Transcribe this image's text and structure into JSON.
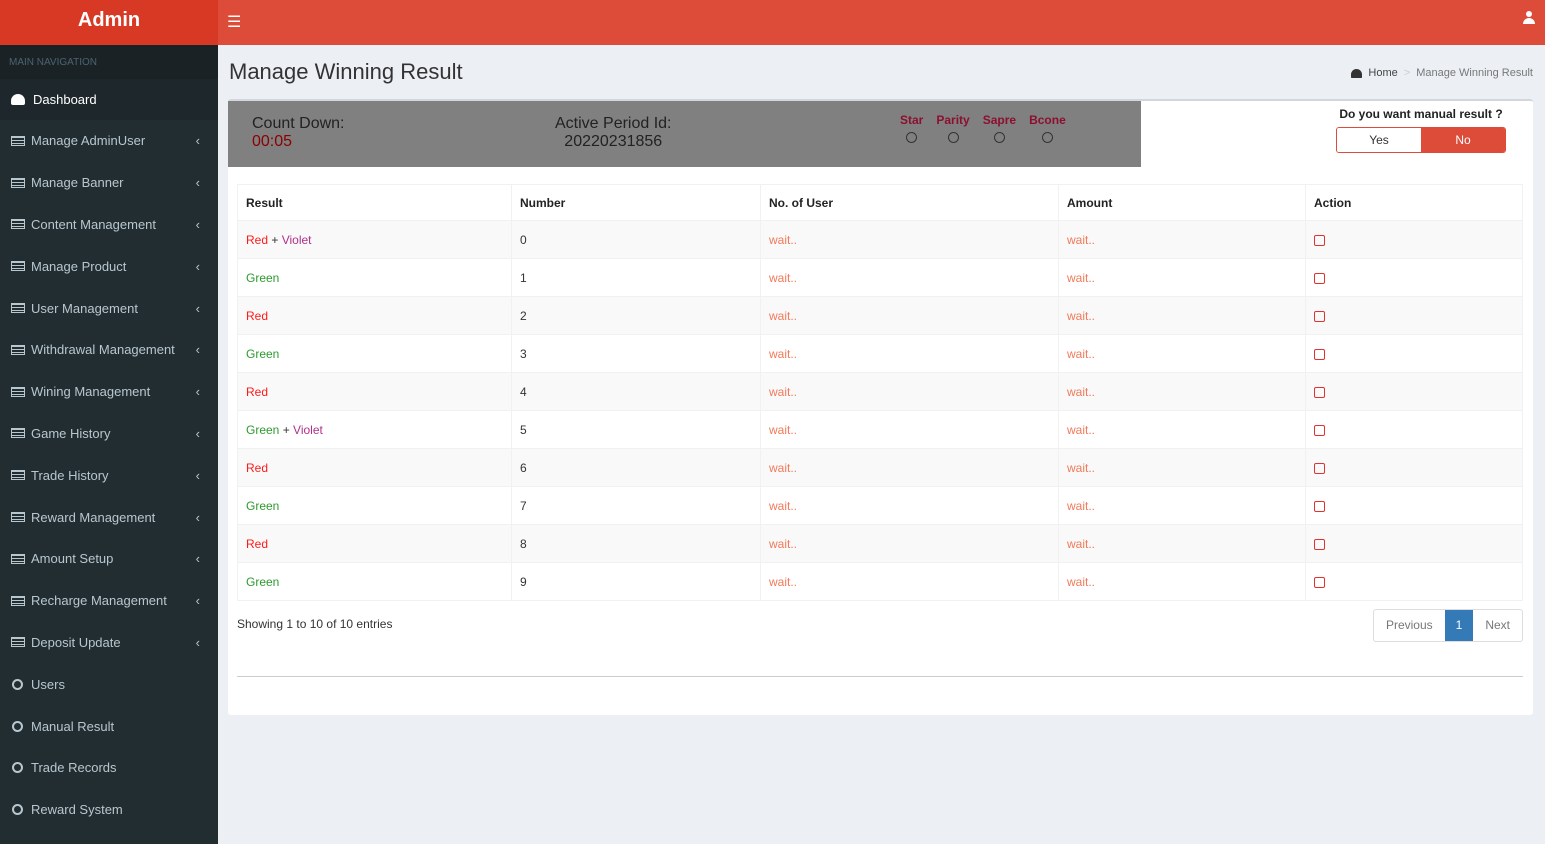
{
  "brand": "Admin",
  "sidebar": {
    "header": "MAIN NAVIGATION",
    "items": [
      {
        "label": "Dashboard",
        "icon": "dashboard-icon"
      },
      {
        "label": "Manage AdminUser",
        "icon": "list-icon"
      },
      {
        "label": "Manage Banner",
        "icon": "list-icon"
      },
      {
        "label": "Content Management",
        "icon": "list-icon"
      },
      {
        "label": "Manage Product",
        "icon": "list-icon"
      },
      {
        "label": "User Management",
        "icon": "list-icon"
      },
      {
        "label": "Withdrawal Management",
        "icon": "list-icon"
      },
      {
        "label": "Wining Management",
        "icon": "list-icon"
      },
      {
        "label": "Game History",
        "icon": "list-icon"
      },
      {
        "label": "Trade History",
        "icon": "list-icon"
      },
      {
        "label": "Reward Management",
        "icon": "list-icon"
      },
      {
        "label": "Amount Setup",
        "icon": "list-icon"
      },
      {
        "label": "Recharge Management",
        "icon": "list-icon"
      },
      {
        "label": "Deposit Update",
        "icon": "list-icon"
      },
      {
        "label": "Users",
        "icon": "circle-icon"
      },
      {
        "label": "Manual Result",
        "icon": "circle-icon"
      },
      {
        "label": "Trade Records",
        "icon": "circle-icon"
      },
      {
        "label": "Reward System",
        "icon": "circle-icon"
      }
    ]
  },
  "page": {
    "title": "Manage Winning Result",
    "breadcrumb": {
      "home": "Home",
      "current": "Manage Winning Result"
    }
  },
  "status": {
    "countdown_label": "Count Down:",
    "countdown": "00:05",
    "period_label": "Active Period Id:",
    "period": "20220231856",
    "options": [
      "Star",
      "Parity",
      "Sapre",
      "Bcone"
    ]
  },
  "manual": {
    "question": "Do you want manual result ?",
    "yes": "Yes",
    "no": "No",
    "selected": "No"
  },
  "table": {
    "headers": [
      "Result",
      "Number",
      "No. of User",
      "Amount",
      "Action"
    ],
    "rows": [
      {
        "result": [
          "Red",
          "Violet"
        ],
        "number": "0",
        "users": "wait..",
        "amount": "wait.."
      },
      {
        "result": [
          "Green"
        ],
        "number": "1",
        "users": "wait..",
        "amount": "wait.."
      },
      {
        "result": [
          "Red"
        ],
        "number": "2",
        "users": "wait..",
        "amount": "wait.."
      },
      {
        "result": [
          "Green"
        ],
        "number": "3",
        "users": "wait..",
        "amount": "wait.."
      },
      {
        "result": [
          "Red"
        ],
        "number": "4",
        "users": "wait..",
        "amount": "wait.."
      },
      {
        "result": [
          "Green",
          "Violet"
        ],
        "number": "5",
        "users": "wait..",
        "amount": "wait.."
      },
      {
        "result": [
          "Red"
        ],
        "number": "6",
        "users": "wait..",
        "amount": "wait.."
      },
      {
        "result": [
          "Green"
        ],
        "number": "7",
        "users": "wait..",
        "amount": "wait.."
      },
      {
        "result": [
          "Red"
        ],
        "number": "8",
        "users": "wait..",
        "amount": "wait.."
      },
      {
        "result": [
          "Green"
        ],
        "number": "9",
        "users": "wait..",
        "amount": "wait.."
      }
    ]
  },
  "footer": {
    "info": "Showing 1 to 10 of 10 entries",
    "previous": "Previous",
    "page": "1",
    "next": "Next"
  },
  "colors": {
    "header": "#dd4b39",
    "sidebar": "#222d32",
    "page_active": "#337ab7"
  }
}
